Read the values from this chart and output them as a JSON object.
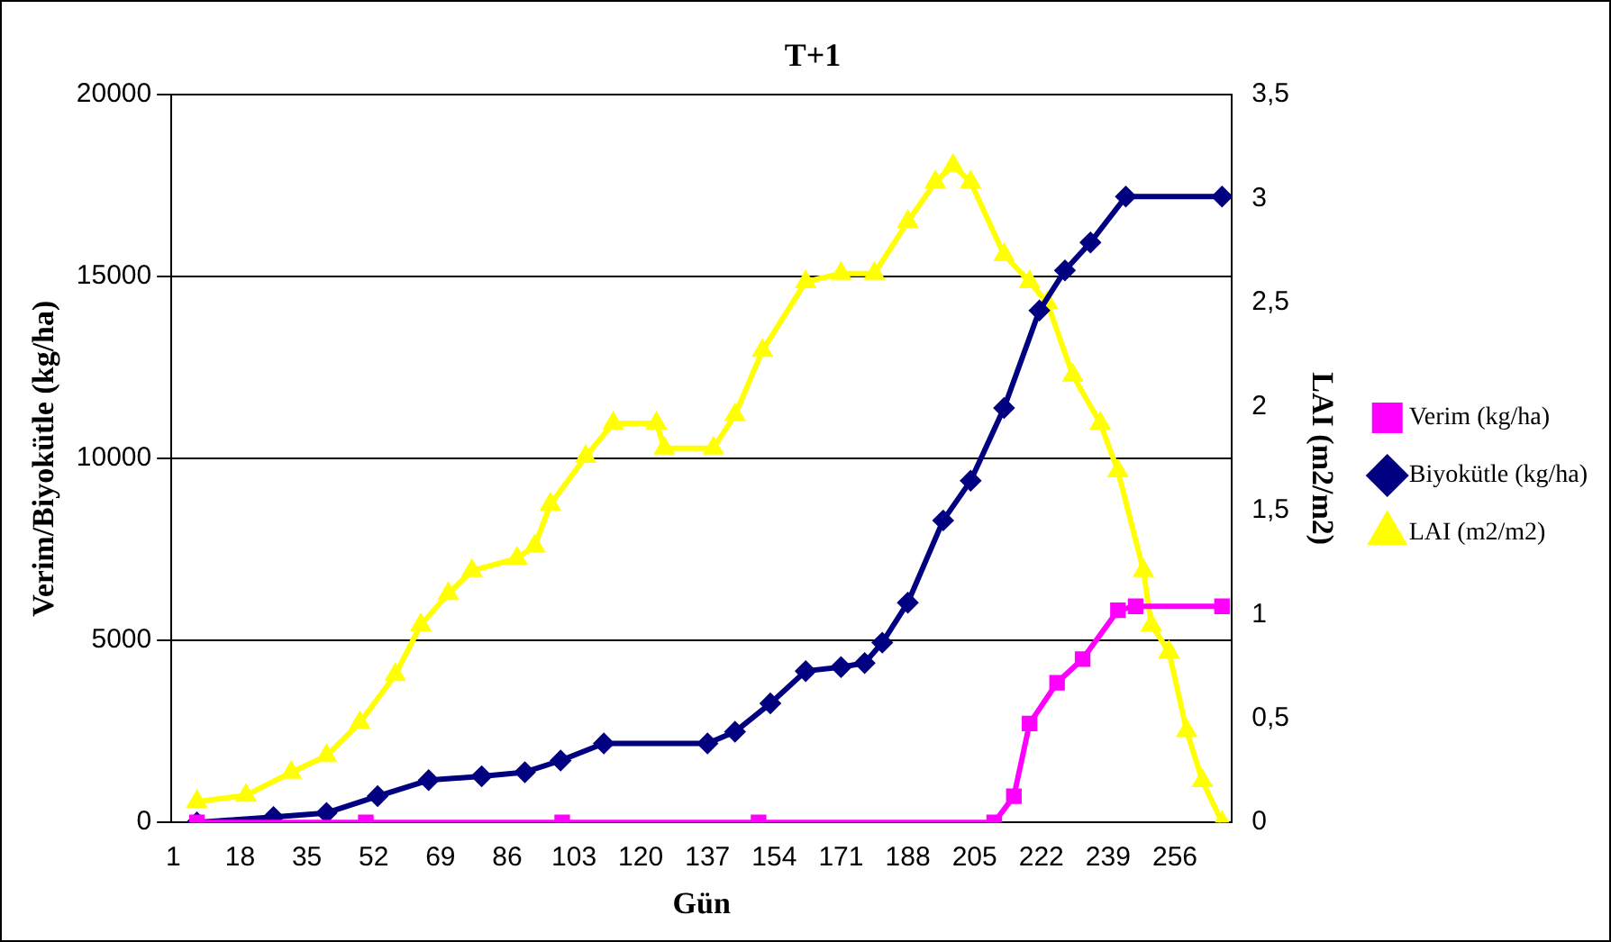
{
  "chart_data": {
    "type": "line",
    "title": "T+1",
    "xlabel": "Gün",
    "ylabel": "Verim/Biyokütle (kg/ha)",
    "y2label": "LAI (m2/m2)",
    "xlim": [
      0.5,
      270.5
    ],
    "xticks": [
      1,
      18,
      35,
      52,
      69,
      86,
      103,
      120,
      137,
      154,
      171,
      188,
      205,
      222,
      239,
      256
    ],
    "ylim": [
      0,
      20000
    ],
    "yticks": [
      0,
      5000,
      10000,
      15000,
      20000
    ],
    "y2lim": [
      0,
      3.5
    ],
    "y2ticks": [
      0,
      {
        "value": 0.5,
        "label": "0,5"
      },
      1,
      {
        "value": 1.5,
        "label": "1,5"
      },
      2,
      {
        "value": 2.5,
        "label": "2,5"
      },
      3,
      {
        "value": 3.5,
        "label": "3,5"
      }
    ],
    "grid": "y",
    "legend": "right",
    "series": [
      {
        "name": "Verim (kg/ha)",
        "color": "#ff00ff",
        "marker": "square",
        "x": [
          7,
          50,
          100,
          150,
          210,
          215,
          219,
          226,
          232.5,
          241.5,
          246,
          268
        ],
        "values": [
          0,
          0,
          0,
          0,
          0,
          720,
          2720,
          3840,
          4490,
          5830,
          5940,
          5940
        ]
      },
      {
        "name": "Biyokütle (kg/ha)",
        "color": "#000080",
        "marker": "diamond",
        "x": [
          7,
          26.5,
          40,
          53,
          66,
          79.5,
          90.5,
          99.6,
          110.6,
          137,
          144,
          153,
          162,
          171,
          177,
          181.5,
          188,
          197,
          204,
          212.5,
          221.5,
          228,
          234.5,
          243.5,
          268
        ],
        "values": [
          0,
          150,
          260,
          720,
          1160,
          1270,
          1380,
          1700,
          2170,
          2170,
          2490,
          3270,
          4160,
          4270,
          4380,
          4940,
          6040,
          8300,
          9390,
          11390,
          14070,
          15170,
          15940,
          17200,
          17200
        ]
      },
      {
        "name": "LAI (m2/m2)",
        "color": "#ffff00",
        "marker": "triangle",
        "axis": "y2",
        "x": [
          7,
          19.5,
          31,
          40,
          48.5,
          57.5,
          64,
          71,
          77,
          88.5,
          93,
          97,
          106,
          113,
          124,
          126,
          138.5,
          144,
          151,
          162,
          171,
          179.5,
          188,
          195,
          199.5,
          204,
          212.5,
          219,
          223.5,
          230,
          237,
          241.5,
          248,
          250,
          254.5,
          259,
          263,
          268
        ],
        "values": [
          0.1,
          0.13,
          0.24,
          0.32,
          0.48,
          0.71,
          0.95,
          1.1,
          1.21,
          1.27,
          1.33,
          1.53,
          1.76,
          1.92,
          1.92,
          1.8,
          1.8,
          1.96,
          2.27,
          2.6,
          2.64,
          2.64,
          2.89,
          3.08,
          3.16,
          3.08,
          2.73,
          2.6,
          2.5,
          2.15,
          1.92,
          1.69,
          1.21,
          0.95,
          0.82,
          0.44,
          0.2,
          0
        ]
      }
    ]
  }
}
